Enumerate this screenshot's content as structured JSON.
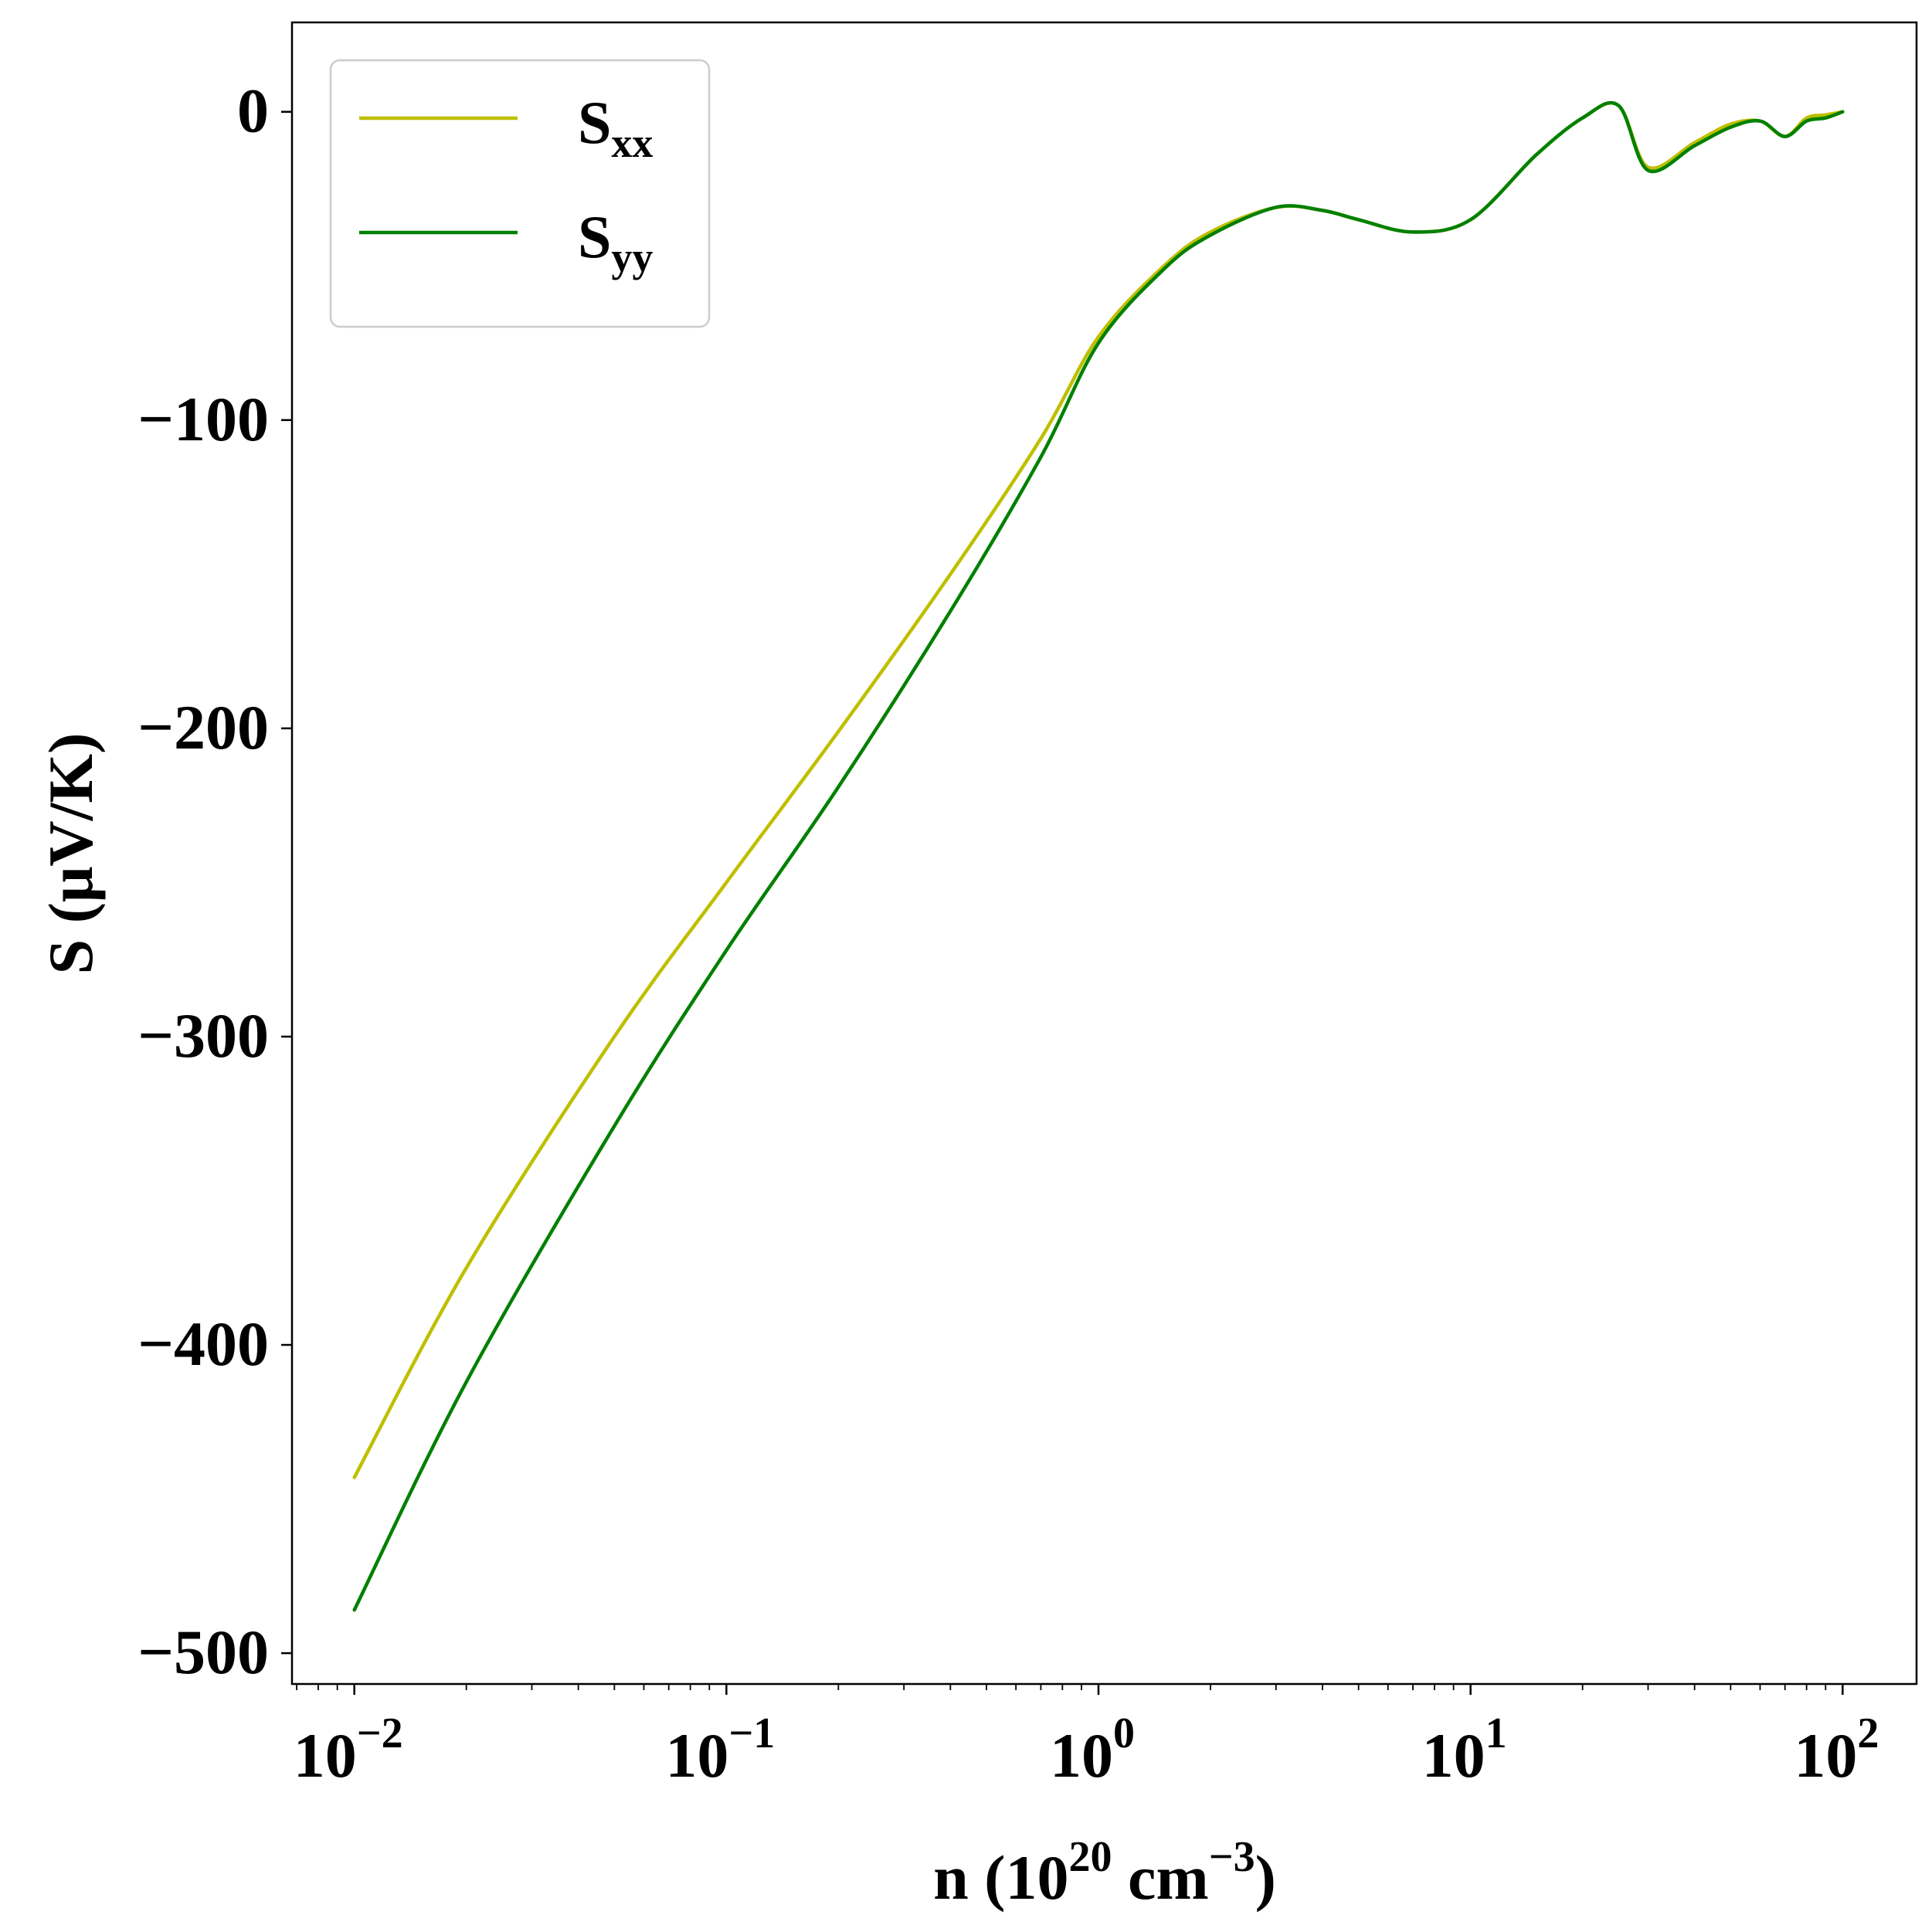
{
  "chart_data": {
    "type": "line",
    "title": "",
    "xlabel": {
      "base": "n (10",
      "sup1": "20",
      "mid": " cm",
      "sup2": "−3",
      "end": ")"
    },
    "ylabel": "S (μV/K)",
    "xscale": "log",
    "xlim": [
      0.0068,
      158
    ],
    "ylim": [
      -510,
      29
    ],
    "xticks": [
      {
        "value": 0.01,
        "base": "10",
        "exp": "−2"
      },
      {
        "value": 0.1,
        "base": "10",
        "exp": "−1"
      },
      {
        "value": 1,
        "base": "10",
        "exp": "0"
      },
      {
        "value": 10,
        "base": "10",
        "exp": "1"
      },
      {
        "value": 100,
        "base": "10",
        "exp": "2"
      }
    ],
    "yticks": [
      {
        "value": 0,
        "label": "0"
      },
      {
        "value": -100,
        "label": "−100"
      },
      {
        "value": -200,
        "label": "−200"
      },
      {
        "value": -300,
        "label": "−300"
      },
      {
        "value": -400,
        "label": "−400"
      },
      {
        "value": -500,
        "label": "−500"
      }
    ],
    "grid": false,
    "legend_position": "top-left",
    "series": [
      {
        "name": "S",
        "subscript": "xx",
        "color": "#bfbf00",
        "x": [
          0.01,
          0.02,
          0.05,
          0.1,
          0.2,
          0.4,
          0.7,
          1.0,
          1.5,
          2.0,
          3.0,
          4.0,
          5.0,
          7.0,
          10.0,
          15.0,
          20.0,
          25.0,
          30.0,
          40.0,
          50.0,
          60.0,
          70.0,
          80.0,
          90.0,
          100.0
        ],
        "y": [
          -443,
          -375,
          -300,
          -250,
          -201,
          -150,
          -106,
          -73,
          -50,
          -39,
          -31,
          -32,
          -35,
          -39,
          -35,
          -14,
          -2,
          2,
          -18,
          -10,
          -4,
          -3,
          -8,
          -2,
          -1,
          0
        ]
      },
      {
        "name": "S",
        "subscript": "yy",
        "color": "#008000",
        "x": [
          0.01,
          0.02,
          0.05,
          0.1,
          0.2,
          0.4,
          0.7,
          1.0,
          1.5,
          2.0,
          3.0,
          4.0,
          5.0,
          7.0,
          10.0,
          15.0,
          20.0,
          25.0,
          30.0,
          40.0,
          50.0,
          60.0,
          70.0,
          80.0,
          90.0,
          100.0
        ],
        "y": [
          -486,
          -412,
          -329,
          -272,
          -219,
          -162,
          -112,
          -75,
          -51,
          -40,
          -31,
          -32,
          -35,
          -39,
          -35,
          -14,
          -2,
          2,
          -19,
          -11,
          -5,
          -3,
          -8,
          -3,
          -2,
          0
        ]
      }
    ]
  }
}
